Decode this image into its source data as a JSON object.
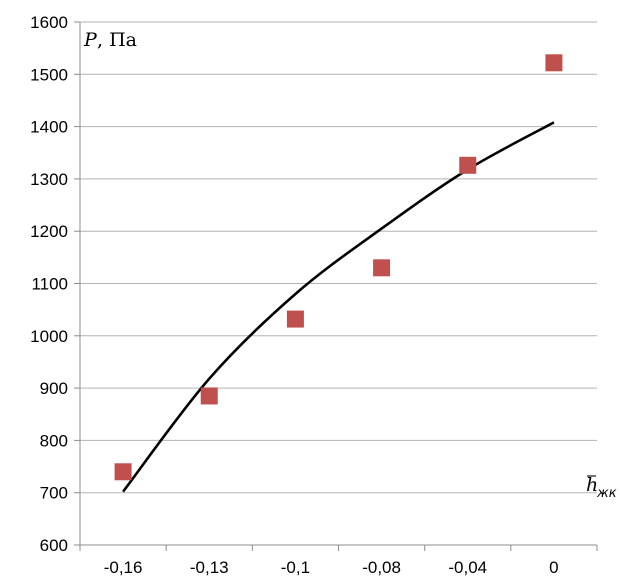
{
  "chart_data": {
    "type": "scatter",
    "x_tick_labels": [
      "-0,16",
      "-0,13",
      "-0,1",
      "-0,08",
      "-0,04",
      "0"
    ],
    "y_ticks": [
      600,
      700,
      800,
      900,
      1000,
      1100,
      1200,
      1300,
      1400,
      1500,
      1600
    ],
    "ylim": [
      600,
      1600
    ],
    "ylabel": {
      "symbol": "P",
      "unit": ", Па"
    },
    "xlabel": {
      "symbol": "h",
      "subscript": "жк"
    },
    "grid": "horizontal",
    "series": [
      {
        "kind": "markers",
        "marker": "square",
        "color": "#C0504D",
        "points": [
          {
            "x": "-0,16",
            "y": 740
          },
          {
            "x": "-0,13",
            "y": 885
          },
          {
            "x": "-0,1",
            "y": 1032
          },
          {
            "x": "-0,08",
            "y": 1130
          },
          {
            "x": "-0,04",
            "y": 1326
          },
          {
            "x": "0",
            "y": 1522
          }
        ]
      },
      {
        "kind": "trendline",
        "color": "#000000",
        "points": [
          {
            "x": "-0,16",
            "y": 702
          },
          {
            "x": "-0,13",
            "y": 918
          },
          {
            "x": "-0,1",
            "y": 1080
          },
          {
            "x": "-0,08",
            "y": 1205
          },
          {
            "x": "-0,04",
            "y": 1318
          },
          {
            "x": "0",
            "y": 1408
          }
        ]
      }
    ]
  }
}
